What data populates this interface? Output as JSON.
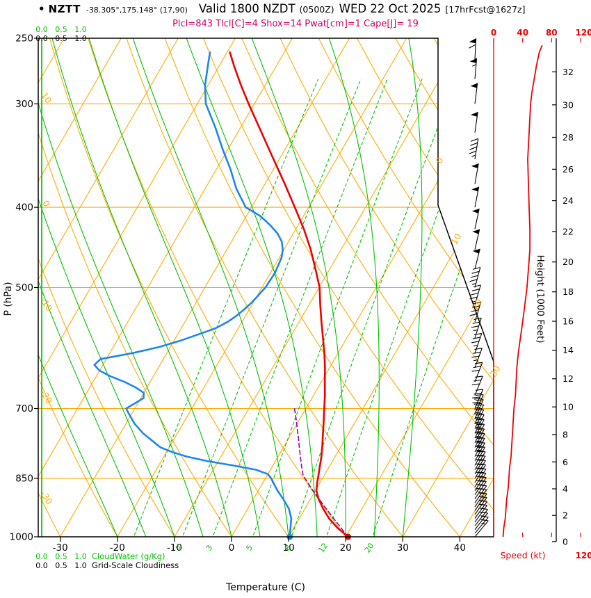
{
  "header": {
    "bullet": "•",
    "station": "NZTT",
    "coords": "-38.305°,175.148° (17,90)",
    "valid_main": "Valid 1800 NZDT",
    "valid_zulu": "(0500Z)",
    "valid_date": "WED 22 Oct 2025",
    "valid_fcst": "[17hrFcst@1627z]",
    "indices": "Plcl=843 Tlcl[C]=4 Shox=14 Pwat[cm]=1 Cape[J]= 19"
  },
  "axes": {
    "pressure_label": "P (hPa)",
    "pressure_ticks": [
      250,
      300,
      400,
      500,
      700,
      850,
      1000
    ],
    "temp_label": "Temperature (C)",
    "temp_ticks": [
      -30,
      -20,
      -10,
      0,
      10,
      20,
      30,
      40
    ],
    "height_label": "Height (1000 Feet)",
    "height_ticks": [
      0,
      2,
      4,
      6,
      8,
      10,
      12,
      14,
      16,
      18,
      20,
      22,
      24,
      26,
      28,
      30,
      32
    ],
    "speed_label": "Speed (kt)",
    "speed_ticks": [
      0,
      40,
      80,
      120
    ],
    "cloud_scale": [
      "0.0",
      "0.5",
      "1.0"
    ],
    "cloudwater_label": "CloudWater (g/Kg)",
    "cloudiness_label": "Grid-Scale Cloudiness",
    "dry_adiabat_labels": [
      10,
      0,
      -10,
      -20,
      -30
    ],
    "isotherm_right_labels": [
      0,
      10,
      20,
      30
    ],
    "mixing_ratio_labels": [
      2,
      3,
      5,
      8,
      12,
      20
    ]
  },
  "colors": {
    "grid_orange": "#ffaa00",
    "green": "#00c300",
    "temperature_red": "#ee0000",
    "dewpoint_blue": "#1c86ee",
    "parcel_purple": "#9900aa",
    "indices_magenta": "#cc0066",
    "speed_red": "#ee0000",
    "black": "#000000"
  },
  "chart_data": {
    "type": "skewt_sounding",
    "pressure_range_hpa": [
      250,
      1000
    ],
    "temp_axis_range_c": [
      -33,
      46
    ],
    "temperature_profile_c": [
      [
        1000,
        20.4
      ],
      [
        975,
        17.6
      ],
      [
        950,
        15.2
      ],
      [
        925,
        13.2
      ],
      [
        900,
        11.4
      ],
      [
        880,
        10.2
      ],
      [
        860,
        9.5
      ],
      [
        850,
        9.2
      ],
      [
        825,
        8.4
      ],
      [
        800,
        7.6
      ],
      [
        775,
        6.6
      ],
      [
        750,
        5.5
      ],
      [
        725,
        4.4
      ],
      [
        700,
        3.2
      ],
      [
        675,
        2.0
      ],
      [
        650,
        0.6
      ],
      [
        625,
        -0.8
      ],
      [
        600,
        -2.4
      ],
      [
        575,
        -4.2
      ],
      [
        550,
        -6.1
      ],
      [
        525,
        -8.0
      ],
      [
        500,
        -9.9
      ],
      [
        475,
        -12.5
      ],
      [
        450,
        -15.3
      ],
      [
        425,
        -18.6
      ],
      [
        400,
        -22.4
      ],
      [
        375,
        -26.5
      ],
      [
        350,
        -31.0
      ],
      [
        325,
        -35.8
      ],
      [
        300,
        -41.0
      ],
      [
        285,
        -44.2
      ],
      [
        270,
        -47.4
      ],
      [
        260,
        -49.5
      ]
    ],
    "dewpoint_profile_c": [
      [
        1000,
        10.2
      ],
      [
        975,
        9.4
      ],
      [
        950,
        8.6
      ],
      [
        925,
        7.2
      ],
      [
        900,
        5.2
      ],
      [
        880,
        3.4
      ],
      [
        860,
        1.8
      ],
      [
        850,
        1.0
      ],
      [
        840,
        0.0
      ],
      [
        830,
        -2.5
      ],
      [
        820,
        -7
      ],
      [
        810,
        -12
      ],
      [
        800,
        -16
      ],
      [
        790,
        -19
      ],
      [
        780,
        -21.5
      ],
      [
        770,
        -23
      ],
      [
        750,
        -26
      ],
      [
        730,
        -28.5
      ],
      [
        710,
        -30.5
      ],
      [
        700,
        -31.5
      ],
      [
        690,
        -30.5
      ],
      [
        680,
        -29.5
      ],
      [
        670,
        -30
      ],
      [
        660,
        -32
      ],
      [
        650,
        -34.5
      ],
      [
        640,
        -37.5
      ],
      [
        630,
        -40
      ],
      [
        620,
        -41.5
      ],
      [
        610,
        -41
      ],
      [
        600,
        -36
      ],
      [
        590,
        -32
      ],
      [
        580,
        -29
      ],
      [
        570,
        -26.5
      ],
      [
        560,
        -24
      ],
      [
        550,
        -22.5
      ],
      [
        540,
        -21.5
      ],
      [
        530,
        -20.8
      ],
      [
        520,
        -20.2
      ],
      [
        510,
        -19.8
      ],
      [
        500,
        -19.4
      ],
      [
        480,
        -19.2
      ],
      [
        460,
        -19.6
      ],
      [
        450,
        -20.2
      ],
      [
        440,
        -21.2
      ],
      [
        430,
        -22.8
      ],
      [
        420,
        -25
      ],
      [
        410,
        -27.5
      ],
      [
        400,
        -31
      ],
      [
        380,
        -34.5
      ],
      [
        360,
        -37.5
      ],
      [
        340,
        -41
      ],
      [
        320,
        -44.5
      ],
      [
        300,
        -48.5
      ],
      [
        285,
        -50.5
      ],
      [
        270,
        -52
      ],
      [
        260,
        -53
      ]
    ],
    "parcel_path_c": [
      [
        1000,
        20.4
      ],
      [
        960,
        16.9
      ],
      [
        920,
        13.3
      ],
      [
        880,
        9.6
      ],
      [
        843,
        6.3
      ],
      [
        820,
        5.0
      ],
      [
        800,
        3.9
      ],
      [
        780,
        2.8
      ],
      [
        760,
        1.7
      ],
      [
        740,
        0.5
      ],
      [
        720,
        -0.7
      ],
      [
        700,
        -2.0
      ]
    ],
    "surface_markers": {
      "pressure_hpa": 1000,
      "temperature_c": 20.4,
      "dewpoint_c": 10.2
    },
    "cloudwater_g_kg_constant": 0.0,
    "grid_scale_cloudiness_constant": 0.0,
    "wind_barbs_p_dir_kt": [
      [
        1000,
        40,
        13
      ],
      [
        990,
        40,
        13
      ],
      [
        980,
        38,
        14
      ],
      [
        970,
        38,
        14
      ],
      [
        960,
        36,
        15
      ],
      [
        950,
        36,
        16
      ],
      [
        940,
        35,
        16
      ],
      [
        930,
        35,
        17
      ],
      [
        920,
        34,
        17
      ],
      [
        910,
        34,
        18
      ],
      [
        900,
        33,
        18
      ],
      [
        890,
        33,
        19
      ],
      [
        880,
        32,
        19
      ],
      [
        870,
        32,
        20
      ],
      [
        860,
        31,
        20
      ],
      [
        850,
        31,
        21
      ],
      [
        840,
        30,
        21
      ],
      [
        830,
        30,
        22
      ],
      [
        820,
        29,
        22
      ],
      [
        810,
        29,
        23
      ],
      [
        800,
        28,
        24
      ],
      [
        790,
        28,
        24
      ],
      [
        780,
        27,
        25
      ],
      [
        770,
        27,
        25
      ],
      [
        760,
        26,
        25
      ],
      [
        750,
        26,
        26
      ],
      [
        740,
        25,
        26
      ],
      [
        730,
        25,
        27
      ],
      [
        720,
        24,
        27
      ],
      [
        710,
        24,
        28
      ],
      [
        700,
        23,
        28
      ],
      [
        675,
        22,
        30
      ],
      [
        650,
        21,
        31
      ],
      [
        625,
        20,
        33
      ],
      [
        600,
        19,
        34
      ],
      [
        575,
        18,
        37
      ],
      [
        550,
        17,
        40
      ],
      [
        525,
        16,
        43
      ],
      [
        500,
        15,
        46
      ],
      [
        475,
        14,
        48
      ],
      [
        450,
        13,
        50
      ],
      [
        425,
        12,
        50
      ],
      [
        400,
        11,
        49
      ],
      [
        375,
        10,
        48
      ],
      [
        350,
        9,
        47
      ],
      [
        325,
        8,
        49
      ],
      [
        300,
        7,
        51
      ],
      [
        280,
        5,
        56
      ],
      [
        265,
        3,
        62
      ]
    ],
    "wind_speed_profile_p_kt": [
      [
        1000,
        13
      ],
      [
        975,
        14
      ],
      [
        950,
        16
      ],
      [
        925,
        17
      ],
      [
        900,
        18
      ],
      [
        875,
        20
      ],
      [
        850,
        21
      ],
      [
        825,
        22
      ],
      [
        800,
        24
      ],
      [
        775,
        25
      ],
      [
        750,
        26
      ],
      [
        725,
        27
      ],
      [
        700,
        28
      ],
      [
        675,
        30
      ],
      [
        650,
        31
      ],
      [
        625,
        32
      ],
      [
        600,
        34
      ],
      [
        575,
        37
      ],
      [
        550,
        40
      ],
      [
        525,
        43
      ],
      [
        500,
        46
      ],
      [
        475,
        48
      ],
      [
        450,
        50
      ],
      [
        425,
        50
      ],
      [
        400,
        49
      ],
      [
        375,
        48
      ],
      [
        350,
        47
      ],
      [
        325,
        49
      ],
      [
        300,
        51
      ],
      [
        290,
        53
      ],
      [
        280,
        56
      ],
      [
        270,
        59
      ],
      [
        260,
        63
      ],
      [
        255,
        67
      ]
    ],
    "grid": {
      "isotherms_c": {
        "min": -80,
        "max": 40,
        "step": 10
      },
      "dry_adiabats_c": {
        "min": -30,
        "max": 110,
        "step": 10
      },
      "moist_adiabats_c": {
        "min": -20,
        "max": 30,
        "step": 5
      },
      "mixing_ratio_g_kg": [
        1,
        2,
        3,
        5,
        8,
        12,
        20
      ],
      "pressure_lines_hpa": [
        300,
        400,
        500,
        700,
        850
      ]
    }
  }
}
